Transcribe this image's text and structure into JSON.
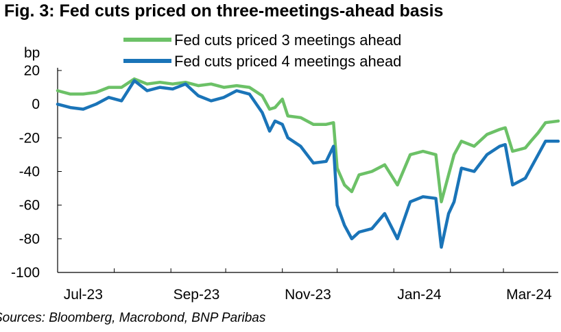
{
  "figure": {
    "title": "Fig. 3: Fed cuts priced on three-meetings-ahead basis",
    "source": "Sources: Bloomberg, Macrobond, BNP Paribas"
  },
  "chart_data": {
    "type": "line",
    "title": "Fig. 3: Fed cuts priced on three-meetings-ahead basis",
    "xlabel": "",
    "ylabel": "bp",
    "x_ticks": [
      "Jul-23",
      "Sep-23",
      "Nov-23",
      "Jan-24",
      "Mar-24"
    ],
    "x_range": [
      "2023-07-01",
      "2024-03-31"
    ],
    "ylim": [
      -100,
      20
    ],
    "y_ticks": [
      20,
      0,
      -20,
      -40,
      -60,
      -80,
      -100
    ],
    "grid": false,
    "legend_position": "top-center",
    "series": [
      {
        "name": "Fed cuts priced 3 meetings ahead",
        "color": "#6cc167",
        "points": [
          [
            "2023-07-01",
            8
          ],
          [
            "2023-07-08",
            6
          ],
          [
            "2023-07-15",
            6
          ],
          [
            "2023-07-22",
            7
          ],
          [
            "2023-07-29",
            10
          ],
          [
            "2023-08-05",
            10
          ],
          [
            "2023-08-12",
            15
          ],
          [
            "2023-08-19",
            12
          ],
          [
            "2023-08-26",
            13
          ],
          [
            "2023-09-02",
            12
          ],
          [
            "2023-09-09",
            13
          ],
          [
            "2023-09-16",
            11
          ],
          [
            "2023-09-23",
            12
          ],
          [
            "2023-09-30",
            10
          ],
          [
            "2023-10-07",
            11
          ],
          [
            "2023-10-14",
            10
          ],
          [
            "2023-10-21",
            5
          ],
          [
            "2023-10-25",
            -3
          ],
          [
            "2023-10-28",
            -2
          ],
          [
            "2023-11-01",
            3
          ],
          [
            "2023-11-04",
            -7
          ],
          [
            "2023-11-11",
            -8
          ],
          [
            "2023-11-18",
            -12
          ],
          [
            "2023-11-25",
            -12
          ],
          [
            "2023-11-29",
            -11
          ],
          [
            "2023-12-01",
            -38
          ],
          [
            "2023-12-05",
            -48
          ],
          [
            "2023-12-09",
            -52
          ],
          [
            "2023-12-13",
            -42
          ],
          [
            "2023-12-20",
            -40
          ],
          [
            "2023-12-27",
            -36
          ],
          [
            "2024-01-03",
            -48
          ],
          [
            "2024-01-10",
            -30
          ],
          [
            "2024-01-17",
            -28
          ],
          [
            "2024-01-24",
            -30
          ],
          [
            "2024-01-27",
            -58
          ],
          [
            "2024-01-31",
            -42
          ],
          [
            "2024-02-03",
            -30
          ],
          [
            "2024-02-07",
            -22
          ],
          [
            "2024-02-14",
            -25
          ],
          [
            "2024-02-21",
            -18
          ],
          [
            "2024-02-28",
            -15
          ],
          [
            "2024-03-02",
            -14
          ],
          [
            "2024-03-06",
            -28
          ],
          [
            "2024-03-13",
            -26
          ],
          [
            "2024-03-16",
            -22
          ],
          [
            "2024-03-20",
            -17
          ],
          [
            "2024-03-24",
            -11
          ],
          [
            "2024-03-31",
            -10
          ]
        ]
      },
      {
        "name": "Fed cuts priced 4 meetings ahead",
        "color": "#1a74b8",
        "points": [
          [
            "2023-07-01",
            0
          ],
          [
            "2023-07-08",
            -2
          ],
          [
            "2023-07-15",
            -3
          ],
          [
            "2023-07-22",
            0
          ],
          [
            "2023-07-29",
            4
          ],
          [
            "2023-08-05",
            2
          ],
          [
            "2023-08-12",
            14
          ],
          [
            "2023-08-19",
            8
          ],
          [
            "2023-08-26",
            10
          ],
          [
            "2023-09-02",
            9
          ],
          [
            "2023-09-09",
            12
          ],
          [
            "2023-09-16",
            5
          ],
          [
            "2023-09-23",
            2
          ],
          [
            "2023-09-30",
            4
          ],
          [
            "2023-10-07",
            8
          ],
          [
            "2023-10-14",
            6
          ],
          [
            "2023-10-21",
            -5
          ],
          [
            "2023-10-25",
            -16
          ],
          [
            "2023-10-28",
            -10
          ],
          [
            "2023-11-01",
            -12
          ],
          [
            "2023-11-04",
            -20
          ],
          [
            "2023-11-11",
            -25
          ],
          [
            "2023-11-18",
            -35
          ],
          [
            "2023-11-25",
            -34
          ],
          [
            "2023-11-29",
            -25
          ],
          [
            "2023-12-01",
            -60
          ],
          [
            "2023-12-05",
            -72
          ],
          [
            "2023-12-09",
            -80
          ],
          [
            "2023-12-13",
            -76
          ],
          [
            "2023-12-20",
            -74
          ],
          [
            "2023-12-27",
            -65
          ],
          [
            "2024-01-03",
            -80
          ],
          [
            "2024-01-10",
            -58
          ],
          [
            "2024-01-17",
            -55
          ],
          [
            "2024-01-24",
            -56
          ],
          [
            "2024-01-27",
            -85
          ],
          [
            "2024-01-31",
            -65
          ],
          [
            "2024-02-03",
            -58
          ],
          [
            "2024-02-07",
            -38
          ],
          [
            "2024-02-14",
            -40
          ],
          [
            "2024-02-21",
            -30
          ],
          [
            "2024-02-28",
            -25
          ],
          [
            "2024-03-02",
            -24
          ],
          [
            "2024-03-06",
            -48
          ],
          [
            "2024-03-13",
            -44
          ],
          [
            "2024-03-16",
            -38
          ],
          [
            "2024-03-20",
            -30
          ],
          [
            "2024-03-24",
            -22
          ],
          [
            "2024-03-31",
            -22
          ]
        ]
      }
    ]
  }
}
